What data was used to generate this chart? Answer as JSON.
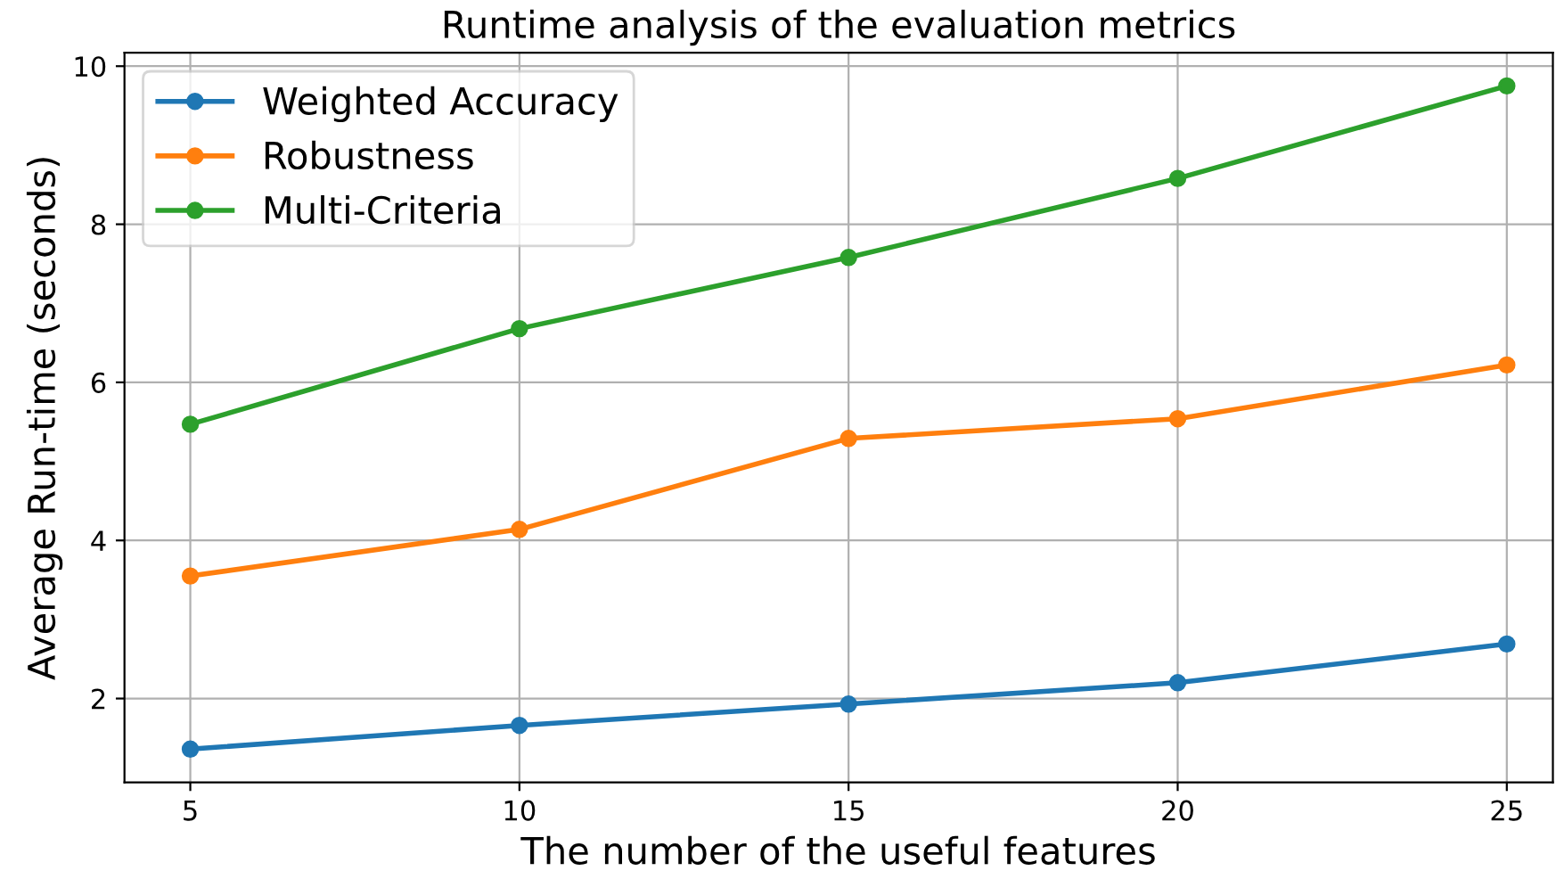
{
  "chart_data": {
    "type": "line",
    "title": "Runtime analysis of the evaluation metrics",
    "xlabel": "The number of the useful features",
    "ylabel": "Average Run-time (seconds)",
    "x": [
      5,
      10,
      15,
      20,
      25
    ],
    "series": [
      {
        "name": "Weighted Accuracy",
        "color": "#1f77b4",
        "values": [
          1.36,
          1.66,
          1.93,
          2.2,
          2.69
        ]
      },
      {
        "name": "Robustness",
        "color": "#ff7f0e",
        "values": [
          3.55,
          4.14,
          5.29,
          5.54,
          6.22
        ]
      },
      {
        "name": "Multi-Criteria",
        "color": "#2ca02c",
        "values": [
          5.47,
          6.68,
          7.58,
          8.58,
          9.75
        ]
      }
    ],
    "xlim": [
      4,
      25.7
    ],
    "xticks": [
      5,
      10,
      15,
      20,
      25
    ],
    "ylim": [
      0.94,
      10.17
    ],
    "yticks": [
      2,
      4,
      6,
      8,
      10
    ],
    "grid": true,
    "legend": "top left",
    "marker": "circle",
    "line_style": "solid"
  }
}
